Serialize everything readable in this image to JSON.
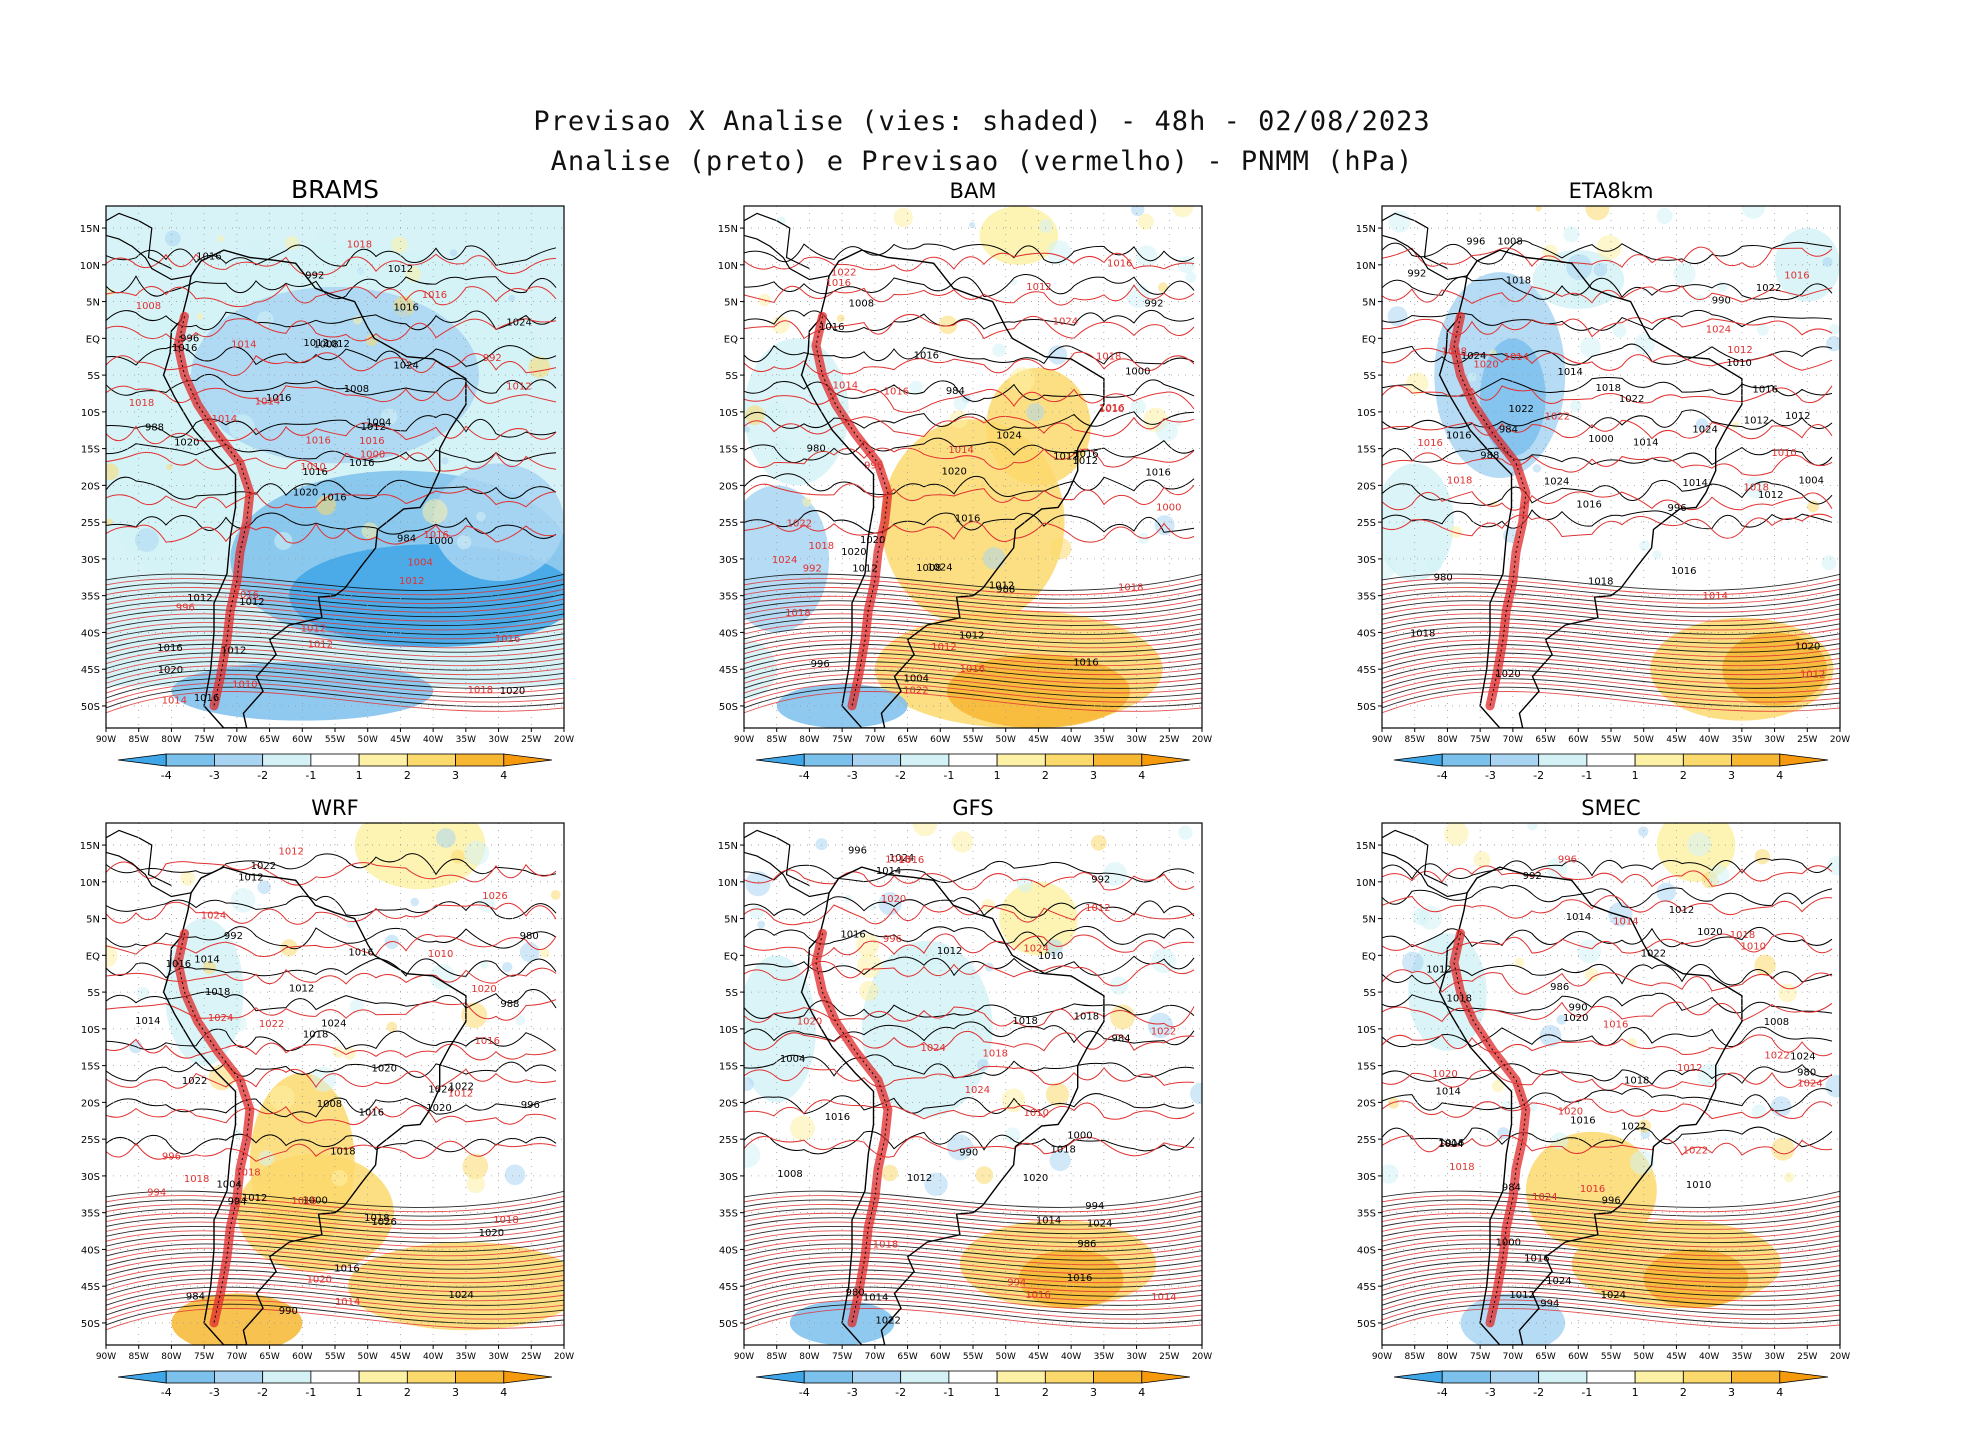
{
  "figure": {
    "title_line1": "Previsao X Analise (vies: shaded) - 48h - 02/08/2023",
    "title_line2": "Analise (preto) e Previsao (vermelho) - PNMM (hPa)"
  },
  "axes": {
    "lat_ticks": [
      "15N",
      "10N",
      "5N",
      "EQ",
      "5S",
      "10S",
      "15S",
      "20S",
      "25S",
      "30S",
      "35S",
      "40S",
      "45S",
      "50S"
    ],
    "lon_ticks": [
      "90W",
      "85W",
      "80W",
      "75W",
      "70W",
      "65W",
      "60W",
      "55W",
      "50W",
      "45W",
      "40W",
      "35W",
      "30W",
      "25W",
      "20W"
    ]
  },
  "colorbar": {
    "labels": [
      "-4",
      "-3",
      "-2",
      "-1",
      "1",
      "2",
      "3",
      "4"
    ],
    "colors": [
      "#3fa6e8",
      "#7cc0ec",
      "#a9d5f2",
      "#d4f2f6",
      "#ffffff",
      "#fdf1a6",
      "#fbd96c",
      "#f7b733",
      "#f59a0c"
    ]
  },
  "colors": {
    "analysis_contour": "#000000",
    "forecast_contour": "#e03030",
    "topography": "#e02828",
    "grid": "#9a9a9a"
  },
  "panels": [
    {
      "name": "BRAMS",
      "labels_black": [
        "1016",
        "1016",
        "1016",
        "1016",
        "1012",
        "1012",
        "1012",
        "1012",
        "1016",
        "1016",
        "1016",
        "1020",
        "1020",
        "1024",
        "1020",
        "1024",
        "1016",
        "1012",
        "1008",
        "1012",
        "1016",
        "1020",
        "1012",
        "1008",
        "1004",
        "1000",
        "996",
        "992",
        "988",
        "984"
      ],
      "labels_red": [
        "1012",
        "1010",
        "1012",
        "1016",
        "1014",
        "1016",
        "1016",
        "1018",
        "1016",
        "1016",
        "1018",
        "1014",
        "1014",
        "1012",
        "1010",
        "1018",
        "1016",
        "1014",
        "1012",
        "1000",
        "996",
        "992",
        "1008",
        "1004"
      ]
    },
    {
      "name": "BAM",
      "labels_black": [
        "1012",
        "1016",
        "1016",
        "1016",
        "1012",
        "1016",
        "1020",
        "1020",
        "1024",
        "1016",
        "1012",
        "1008",
        "1004",
        "1000",
        "996",
        "992",
        "988",
        "984",
        "980",
        "1024",
        "1012",
        "1016",
        "1020",
        "1012",
        "1008"
      ],
      "labels_red": [
        "1018",
        "1012",
        "1014",
        "1016",
        "1018",
        "1016",
        "1016",
        "1022",
        "1024",
        "1018",
        "1016",
        "1016",
        "1022",
        "1024",
        "1014",
        "1012",
        "1010",
        "1000",
        "996",
        "992",
        "1018",
        "1022"
      ]
    },
    {
      "name": "ETA8km",
      "labels_black": [
        "1012",
        "1016",
        "1016",
        "1016",
        "1014",
        "1018",
        "1020",
        "1022",
        "1024",
        "1024",
        "1022",
        "1018",
        "1014",
        "1012",
        "1010",
        "1008",
        "1004",
        "1000",
        "996",
        "992",
        "990",
        "988",
        "984",
        "980",
        "996",
        "1018",
        "1014",
        "1012",
        "1016",
        "1020",
        "1024",
        "1022",
        "1018"
      ],
      "labels_red": [
        "1012",
        "1016",
        "1018",
        "1016",
        "1014",
        "1018",
        "1020",
        "1024",
        "1022",
        "1014",
        "1012",
        "1010",
        "1018"
      ]
    },
    {
      "name": "WRF",
      "labels_black": [
        "1018",
        "1016",
        "1018",
        "1012",
        "1012",
        "1016",
        "1014",
        "1016",
        "1020",
        "1020",
        "1022",
        "1024",
        "1024",
        "1022",
        "1018",
        "1016",
        "1012",
        "1008",
        "1004",
        "1000",
        "996",
        "994",
        "992",
        "990",
        "988",
        "984",
        "980",
        "1026",
        "1024",
        "1022",
        "1020",
        "1018",
        "1014"
      ],
      "labels_red": [
        "1018",
        "1012",
        "1016",
        "1018",
        "1020",
        "1024",
        "1026",
        "1020",
        "1016",
        "1014",
        "1012",
        "1010",
        "1018",
        "1022",
        "1024",
        "996",
        "994"
      ]
    },
    {
      "name": "GFS",
      "labels_black": [
        "1012",
        "1016",
        "1018",
        "1014",
        "1016",
        "1020",
        "1024",
        "1022",
        "1018",
        "1016",
        "1012",
        "1008",
        "1004",
        "1000",
        "996",
        "994",
        "992",
        "990",
        "986",
        "984",
        "980",
        "1024",
        "1014",
        "1010",
        "1018",
        "1014"
      ],
      "labels_red": [
        "1018",
        "1016",
        "1018",
        "1020",
        "1024",
        "1024",
        "1020",
        "1018",
        "1016",
        "1014",
        "1012",
        "1010",
        "996",
        "994",
        "1022",
        "1024"
      ]
    },
    {
      "name": "SMEC",
      "labels_black": [
        "1012",
        "1016",
        "1018",
        "1014",
        "1016",
        "1020",
        "1022",
        "1024",
        "1024",
        "1022",
        "1020",
        "1016",
        "1012",
        "1010",
        "1008",
        "1004",
        "1000",
        "996",
        "994",
        "992",
        "990",
        "986",
        "984",
        "980",
        "1024",
        "1014",
        "1018",
        "1012"
      ],
      "labels_red": [
        "1018",
        "1016",
        "1020",
        "1022",
        "1024",
        "1018",
        "1016",
        "1014",
        "1012",
        "1010",
        "996",
        "1024",
        "1020",
        "1022"
      ]
    }
  ]
}
